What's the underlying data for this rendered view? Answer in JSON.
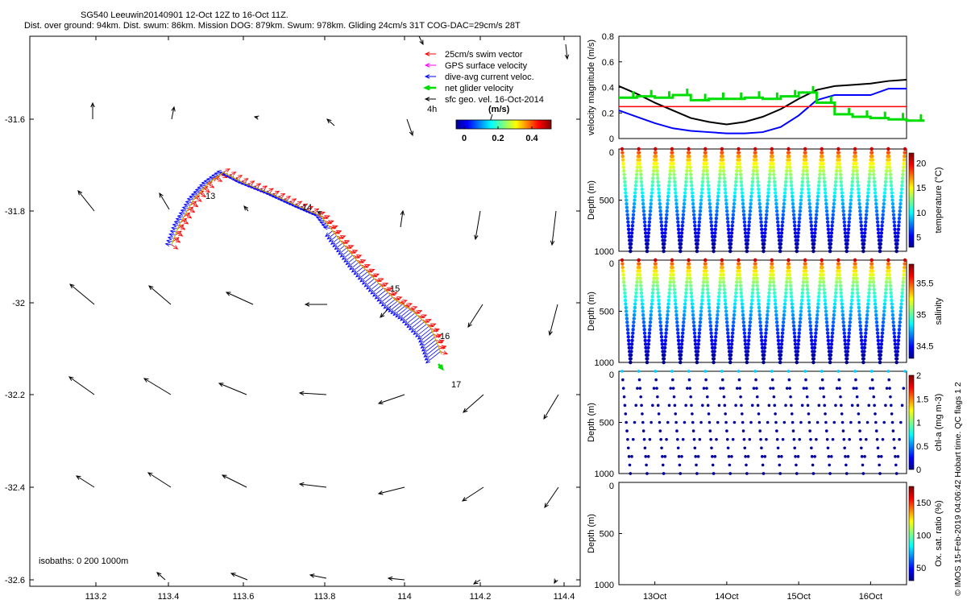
{
  "header": {
    "line1": "SG540 Leeuwin20140901 12-Oct 12Z to 16-Oct 11Z.",
    "line2": "Dist. over ground: 94km. Dist. swum: 86km. Mission DOG: 879km. Swum: 978km. Gliding 24cm/s 31T COG-DAC=29cm/s 28T"
  },
  "map": {
    "xticks": [
      "113.2",
      "113.4",
      "113.6",
      "113.8",
      "114",
      "114.2",
      "114.4"
    ],
    "yticks": [
      "-31.6",
      "-31.8",
      "-32",
      "-32.2",
      "-32.4",
      "-32.6"
    ],
    "legend": [
      {
        "label": "25cm/s swim vector",
        "color": "#ff0000"
      },
      {
        "label": "GPS surface velocity",
        "color": "#ff00ff"
      },
      {
        "label": "dive-avg current veloc.",
        "color": "#0000ff"
      },
      {
        "label": "net glider velocity",
        "color": "#00dd00"
      },
      {
        "label": "sfc geo. vel. 16-Oct-2014",
        "color": "#000000"
      }
    ],
    "legend_hint": "4h",
    "colorbar": {
      "unit": "(m/s)",
      "ticks": [
        "0",
        "0.2",
        "0.4"
      ]
    },
    "day_labels": [
      "13",
      "14",
      "15",
      "16",
      "17"
    ],
    "isobaths": "isobaths: 0   200  1000m"
  },
  "colors": {
    "swim": "#ff0000",
    "current": "#0000ff",
    "net": "#00dd00",
    "ref": "#ff0000",
    "magnitude": "#000000"
  },
  "chart_data": [
    {
      "type": "line",
      "ylabel": "velocity magnitude (m/s)",
      "ylim": [
        0,
        0.8
      ],
      "yticks": [
        "0",
        "0.2",
        "0.4",
        "0.6",
        "0.8"
      ],
      "x": [
        12.5,
        12.75,
        13.0,
        13.25,
        13.5,
        13.75,
        14.0,
        14.25,
        14.5,
        14.75,
        15.0,
        15.25,
        15.5,
        15.75,
        16.0,
        16.25,
        16.5
      ],
      "series": [
        {
          "values": [
            0.41,
            0.35,
            0.28,
            0.22,
            0.16,
            0.13,
            0.11,
            0.13,
            0.17,
            0.23,
            0.31,
            0.38,
            0.41,
            0.42,
            0.43,
            0.45,
            0.46
          ]
        },
        {
          "values": [
            0.22,
            0.17,
            0.12,
            0.08,
            0.06,
            0.05,
            0.04,
            0.04,
            0.05,
            0.09,
            0.18,
            0.3,
            0.34,
            0.34,
            0.34,
            0.39,
            0.39
          ]
        },
        {
          "values": [
            0.32,
            0.33,
            0.32,
            0.34,
            0.3,
            0.31,
            0.31,
            0.32,
            0.31,
            0.33,
            0.36,
            0.28,
            0.19,
            0.17,
            0.16,
            0.15,
            0.14
          ]
        },
        {
          "values": [
            0.25,
            0.25,
            0.25,
            0.25,
            0.25,
            0.25,
            0.25,
            0.25,
            0.25,
            0.25,
            0.25,
            0.25,
            0.25,
            0.25,
            0.25,
            0.25,
            0.25
          ]
        }
      ]
    },
    {
      "type": "scatter",
      "ylabel": "Depth (m)",
      "yticks": [
        "0",
        "500",
        "1000"
      ],
      "ylim": [
        1000,
        0
      ],
      "colorbar_label": "temperature (°C)",
      "colorbar_ticks": [
        "5",
        "10",
        "15",
        "20"
      ],
      "clim": [
        3,
        22
      ]
    },
    {
      "type": "scatter",
      "ylabel": "Depth (m)",
      "yticks": [
        "0",
        "500",
        "1000"
      ],
      "ylim": [
        1000,
        0
      ],
      "colorbar_label": "salinity",
      "colorbar_ticks": [
        "34.5",
        "35",
        "35.5"
      ],
      "clim": [
        34.3,
        35.8
      ]
    },
    {
      "type": "scatter",
      "ylabel": "Depth (m)",
      "yticks": [
        "0",
        "500",
        "1000"
      ],
      "ylim": [
        1000,
        0
      ],
      "colorbar_label": "chl-a (mg m-3)",
      "colorbar_ticks": [
        "0",
        "0.5",
        "1",
        "1.5",
        "2"
      ],
      "clim": [
        0,
        2
      ]
    },
    {
      "type": "scatter",
      "ylabel": "Depth (m)",
      "yticks": [
        "0",
        "500",
        "1000"
      ],
      "ylim": [
        1000,
        0
      ],
      "colorbar_label": "Ox. sat. ratio (%)",
      "colorbar_ticks": [
        "50",
        "100",
        "150"
      ],
      "clim": [
        30,
        175
      ]
    }
  ],
  "time_axis": {
    "ticks": [
      "13Oct",
      "14Oct",
      "15Oct",
      "16Oct"
    ],
    "tick_values": [
      13,
      14,
      15,
      16
    ],
    "range": [
      12.5,
      16.5
    ]
  },
  "footer": {
    "stamp": "© IMOS 15-Feb-2019 04:06:42 Hobart time. QC flags 1  2"
  }
}
